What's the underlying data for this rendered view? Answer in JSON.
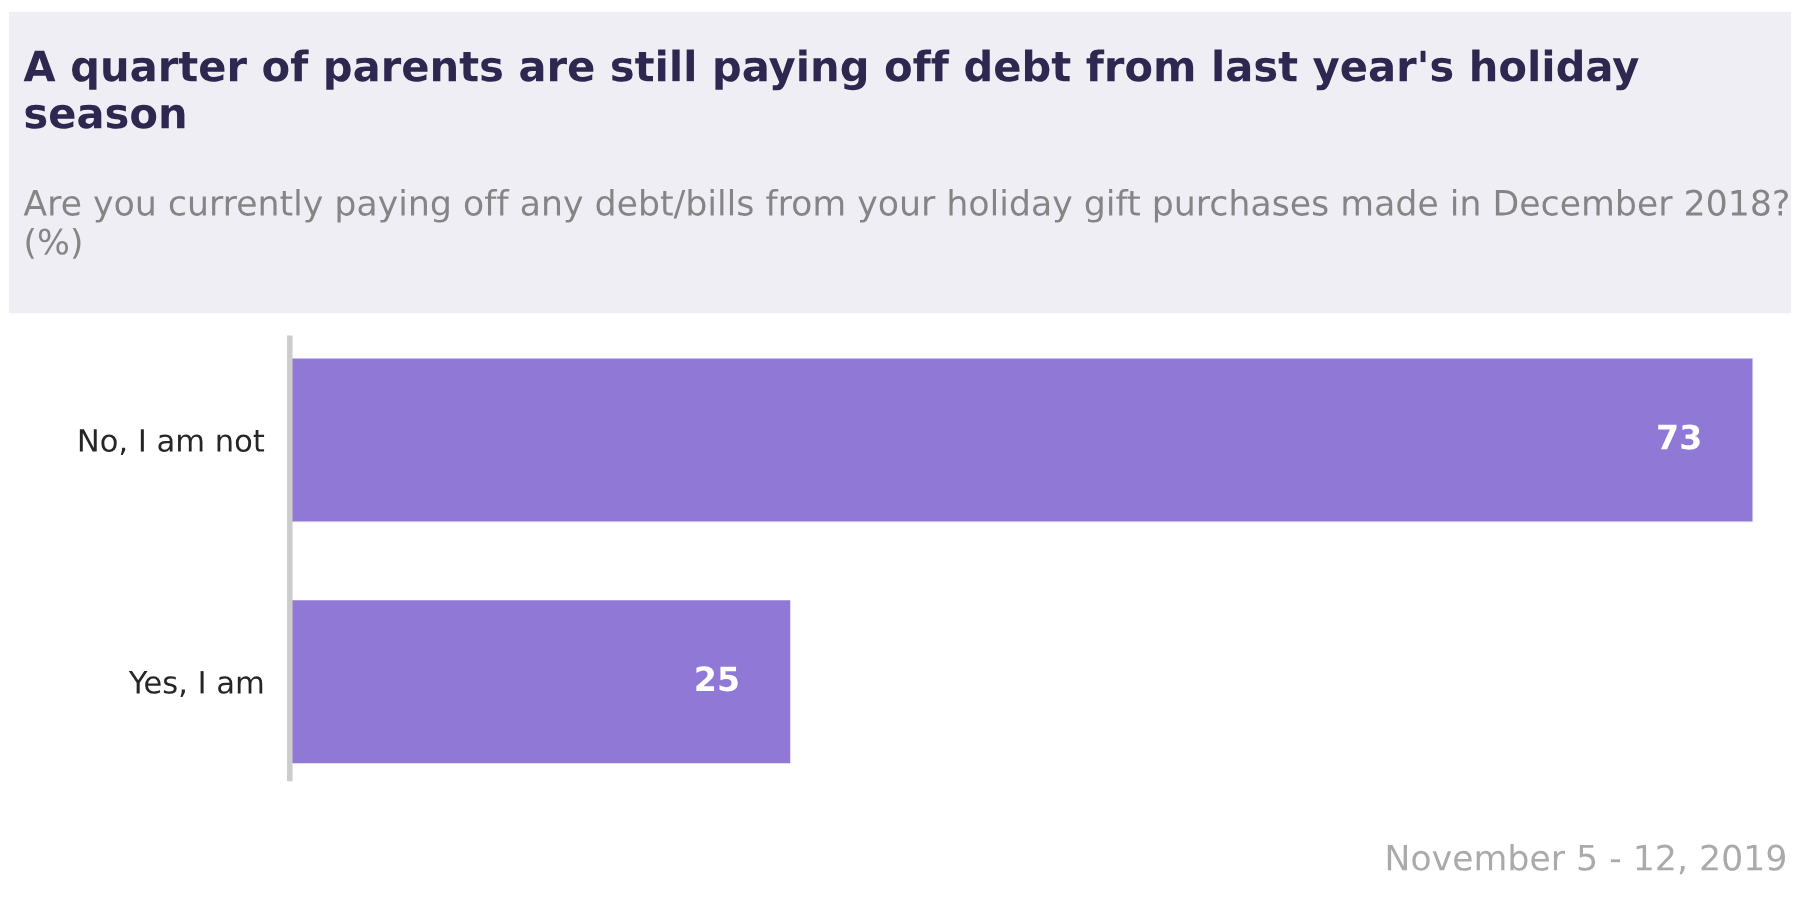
{
  "chart_data": {
    "type": "bar",
    "orientation": "horizontal",
    "title": "A quarter of parents are still paying off debt from last year's holiday season",
    "subtitle": "Are you currently paying off any debt/bills from your holiday gift purchases made in December 2018? (%)",
    "categories": [
      "No, I am not",
      "Yes, I am"
    ],
    "values": [
      73,
      25
    ],
    "color": "#9079d6",
    "data_labels": true,
    "grid": false,
    "annotations": [
      "November 5 - 12, 2019"
    ]
  }
}
